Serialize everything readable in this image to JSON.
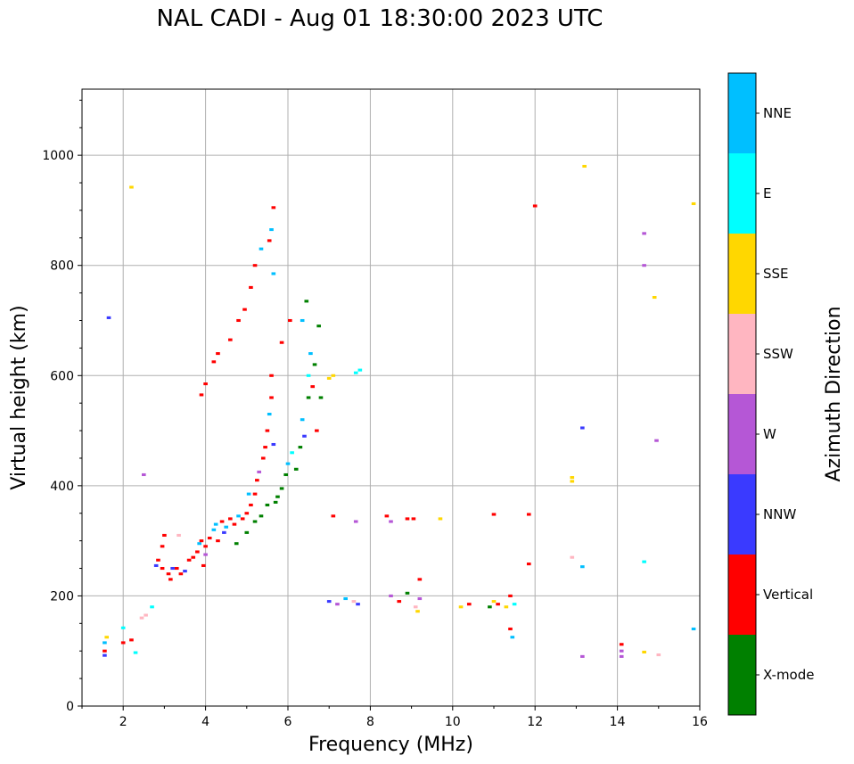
{
  "chart_data": {
    "type": "scatter",
    "title": "NAL CADI - Aug 01 18:30:00 2023 UTC",
    "xlabel": "Frequency (MHz)",
    "ylabel": "Virtual height (km)",
    "xlim": [
      1,
      16
    ],
    "ylim": [
      0,
      1120
    ],
    "xticks": [
      2,
      4,
      6,
      8,
      10,
      12,
      14,
      16
    ],
    "yticks": [
      0,
      200,
      400,
      600,
      800,
      1000
    ],
    "grid": true,
    "colorbar": {
      "label": "Azimuth Direction",
      "categories": [
        {
          "name": "X-mode",
          "color": "#008000"
        },
        {
          "name": "Vertical",
          "color": "#ff0000"
        },
        {
          "name": "NNW",
          "color": "#3a3aff"
        },
        {
          "name": "W",
          "color": "#b557d6"
        },
        {
          "name": "SSW",
          "color": "#ffb6c1"
        },
        {
          "name": "SSE",
          "color": "#ffd700"
        },
        {
          "name": "E",
          "color": "#00ffff"
        },
        {
          "name": "NNE",
          "color": "#00bfff"
        }
      ]
    },
    "points": [
      [
        1.55,
        100,
        "Vertical"
      ],
      [
        1.55,
        115,
        "NNE"
      ],
      [
        1.6,
        125,
        "SSE"
      ],
      [
        1.55,
        92,
        "NNW"
      ],
      [
        1.65,
        705,
        "NNW"
      ],
      [
        2.0,
        115,
        "Vertical"
      ],
      [
        2.0,
        142,
        "E"
      ],
      [
        2.2,
        942,
        "SSE"
      ],
      [
        2.2,
        120,
        "Vertical"
      ],
      [
        2.3,
        97,
        "E"
      ],
      [
        2.5,
        420,
        "W"
      ],
      [
        2.45,
        160,
        "SSW"
      ],
      [
        2.55,
        165,
        "SSW"
      ],
      [
        2.7,
        180,
        "E"
      ],
      [
        2.8,
        255,
        "NNW"
      ],
      [
        2.85,
        265,
        "Vertical"
      ],
      [
        2.95,
        250,
        "Vertical"
      ],
      [
        2.95,
        290,
        "Vertical"
      ],
      [
        3.0,
        310,
        "Vertical"
      ],
      [
        3.1,
        240,
        "Vertical"
      ],
      [
        3.15,
        230,
        "Vertical"
      ],
      [
        3.2,
        250,
        "NNW"
      ],
      [
        3.3,
        250,
        "Vertical"
      ],
      [
        3.35,
        310,
        "SSW"
      ],
      [
        3.4,
        240,
        "Vertical"
      ],
      [
        3.5,
        245,
        "NNW"
      ],
      [
        3.6,
        265,
        "Vertical"
      ],
      [
        3.7,
        270,
        "Vertical"
      ],
      [
        3.8,
        280,
        "Vertical"
      ],
      [
        3.85,
        295,
        "NNE"
      ],
      [
        3.9,
        300,
        "Vertical"
      ],
      [
        4.0,
        290,
        "Vertical"
      ],
      [
        4.0,
        275,
        "W"
      ],
      [
        3.95,
        255,
        "Vertical"
      ],
      [
        4.1,
        305,
        "Vertical"
      ],
      [
        4.2,
        320,
        "NNE"
      ],
      [
        4.25,
        330,
        "NNE"
      ],
      [
        4.3,
        300,
        "Vertical"
      ],
      [
        4.4,
        335,
        "Vertical"
      ],
      [
        4.45,
        315,
        "NNW"
      ],
      [
        4.5,
        325,
        "NNE"
      ],
      [
        4.6,
        340,
        "Vertical"
      ],
      [
        4.7,
        330,
        "Vertical"
      ],
      [
        4.75,
        295,
        "Green"
      ],
      [
        4.8,
        345,
        "NNE"
      ],
      [
        4.9,
        340,
        "Vertical"
      ],
      [
        5.0,
        350,
        "Vertical"
      ],
      [
        5.0,
        315,
        "X-mode"
      ],
      [
        5.05,
        385,
        "NNE"
      ],
      [
        5.1,
        365,
        "Vertical"
      ],
      [
        5.2,
        385,
        "Vertical"
      ],
      [
        5.2,
        335,
        "X-mode"
      ],
      [
        5.25,
        410,
        "Vertical"
      ],
      [
        5.3,
        425,
        "W"
      ],
      [
        5.35,
        345,
        "X-mode"
      ],
      [
        5.4,
        450,
        "Vertical"
      ],
      [
        5.45,
        470,
        "Vertical"
      ],
      [
        5.5,
        365,
        "X-mode"
      ],
      [
        5.5,
        500,
        "Vertical"
      ],
      [
        5.55,
        530,
        "NNE"
      ],
      [
        5.6,
        560,
        "Vertical"
      ],
      [
        5.6,
        600,
        "Vertical"
      ],
      [
        5.7,
        370,
        "X-mode"
      ],
      [
        5.65,
        475,
        "NNW"
      ],
      [
        5.75,
        380,
        "X-mode"
      ],
      [
        5.85,
        395,
        "X-mode"
      ],
      [
        5.95,
        420,
        "X-mode"
      ],
      [
        6.0,
        440,
        "NNE"
      ],
      [
        6.1,
        460,
        "E"
      ],
      [
        6.2,
        430,
        "X-mode"
      ],
      [
        6.3,
        470,
        "X-mode"
      ],
      [
        6.35,
        520,
        "NNE"
      ],
      [
        6.4,
        490,
        "NNW"
      ],
      [
        6.5,
        560,
        "X-mode"
      ],
      [
        6.5,
        600,
        "E"
      ],
      [
        6.55,
        640,
        "NNE"
      ],
      [
        6.6,
        580,
        "Vertical"
      ],
      [
        6.65,
        620,
        "X-mode"
      ],
      [
        6.7,
        500,
        "Vertical"
      ],
      [
        6.75,
        690,
        "X-mode"
      ],
      [
        6.8,
        560,
        "X-mode"
      ],
      [
        6.45,
        735,
        "X-mode"
      ],
      [
        6.35,
        700,
        "NNE"
      ],
      [
        6.05,
        700,
        "Vertical"
      ],
      [
        4.0,
        585,
        "Vertical"
      ],
      [
        3.9,
        565,
        "Vertical"
      ],
      [
        4.2,
        625,
        "Vertical"
      ],
      [
        4.3,
        640,
        "Vertical"
      ],
      [
        4.6,
        665,
        "Vertical"
      ],
      [
        4.8,
        700,
        "Vertical"
      ],
      [
        4.95,
        720,
        "Vertical"
      ],
      [
        5.1,
        760,
        "Vertical"
      ],
      [
        5.2,
        800,
        "Vertical"
      ],
      [
        5.35,
        830,
        "NNE"
      ],
      [
        5.55,
        845,
        "Vertical"
      ],
      [
        5.65,
        905,
        "Vertical"
      ],
      [
        5.6,
        865,
        "NNE"
      ],
      [
        5.65,
        785,
        "NNE"
      ],
      [
        5.85,
        660,
        "Vertical"
      ],
      [
        7.0,
        595,
        "SSE"
      ],
      [
        7.1,
        600,
        "SSE"
      ],
      [
        7.65,
        605,
        "E"
      ],
      [
        7.75,
        610,
        "E"
      ],
      [
        7.1,
        345,
        "Vertical"
      ],
      [
        7.65,
        335,
        "W"
      ],
      [
        7.0,
        190,
        "NNW"
      ],
      [
        7.2,
        185,
        "W"
      ],
      [
        7.4,
        195,
        "NNE"
      ],
      [
        7.6,
        190,
        "SSW"
      ],
      [
        7.7,
        185,
        "NNW"
      ],
      [
        8.4,
        345,
        "Vertical"
      ],
      [
        8.5,
        335,
        "W"
      ],
      [
        8.9,
        340,
        "Vertical"
      ],
      [
        9.05,
        340,
        "Vertical"
      ],
      [
        9.7,
        340,
        "SSE"
      ],
      [
        8.5,
        200,
        "W"
      ],
      [
        8.7,
        190,
        "Vertical"
      ],
      [
        8.9,
        205,
        "X-mode"
      ],
      [
        9.1,
        180,
        "SSW"
      ],
      [
        9.2,
        195,
        "W"
      ],
      [
        9.2,
        230,
        "Vertical"
      ],
      [
        9.15,
        172,
        "SSE"
      ],
      [
        10.2,
        180,
        "SSE"
      ],
      [
        10.4,
        185,
        "Vertical"
      ],
      [
        10.9,
        180,
        "X-mode"
      ],
      [
        11.0,
        190,
        "SSE"
      ],
      [
        11.1,
        185,
        "Vertical"
      ],
      [
        11.3,
        180,
        "SSE"
      ],
      [
        11.4,
        200,
        "Vertical"
      ],
      [
        11.4,
        140,
        "Vertical"
      ],
      [
        11.45,
        125,
        "NNE"
      ],
      [
        11.5,
        185,
        "E"
      ],
      [
        11.0,
        348,
        "Vertical"
      ],
      [
        11.85,
        348,
        "Vertical"
      ],
      [
        11.85,
        258,
        "Vertical"
      ],
      [
        12.0,
        908,
        "Vertical"
      ],
      [
        12.9,
        415,
        "SSE"
      ],
      [
        12.9,
        408,
        "SSE"
      ],
      [
        12.9,
        270,
        "SSW"
      ],
      [
        13.15,
        253,
        "NNE"
      ],
      [
        13.15,
        505,
        "NNW"
      ],
      [
        13.15,
        90,
        "W"
      ],
      [
        13.2,
        980,
        "SSE"
      ],
      [
        14.1,
        112,
        "Vertical"
      ],
      [
        14.1,
        100,
        "W"
      ],
      [
        14.1,
        90,
        "W"
      ],
      [
        14.65,
        262,
        "E"
      ],
      [
        14.65,
        858,
        "W"
      ],
      [
        14.65,
        800,
        "W"
      ],
      [
        14.65,
        98,
        "SSE"
      ],
      [
        14.9,
        742,
        "SSE"
      ],
      [
        14.95,
        482,
        "W"
      ],
      [
        15.0,
        93,
        "SSW"
      ],
      [
        15.85,
        912,
        "SSE"
      ],
      [
        15.85,
        140,
        "NNE"
      ]
    ]
  }
}
